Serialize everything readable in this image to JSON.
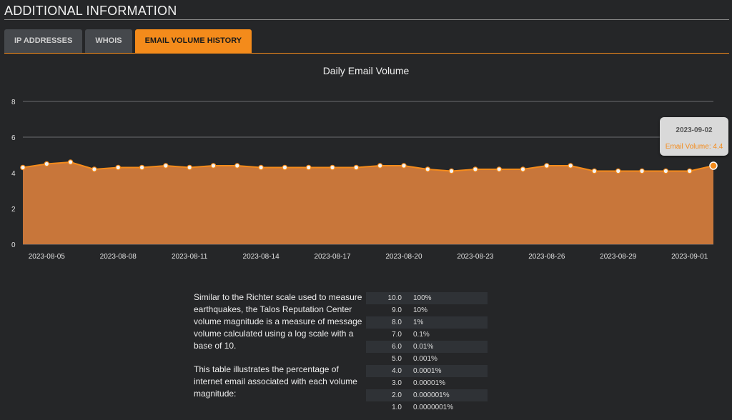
{
  "header": {
    "title": "ADDITIONAL INFORMATION"
  },
  "tabs": [
    {
      "label": "IP ADDRESSES",
      "active": false
    },
    {
      "label": "WHOIS",
      "active": false
    },
    {
      "label": "EMAIL VOLUME HISTORY",
      "active": true
    }
  ],
  "colors": {
    "accent": "#f48b1b",
    "area_fill": "#c8763a",
    "background": "#252628"
  },
  "chart_data": {
    "type": "area",
    "title": "Daily Email Volume",
    "xlabel": "",
    "ylabel": "",
    "ylim": [
      0,
      8
    ],
    "yticks": [
      0,
      2,
      4,
      6,
      8
    ],
    "grid": "horizontal",
    "x_tick_labels": [
      "2023-08-05",
      "2023-08-08",
      "2023-08-11",
      "2023-08-14",
      "2023-08-17",
      "2023-08-20",
      "2023-08-23",
      "2023-08-26",
      "2023-08-29",
      "2023-09-01"
    ],
    "x": [
      "2023-08-04",
      "2023-08-05",
      "2023-08-06",
      "2023-08-07",
      "2023-08-08",
      "2023-08-09",
      "2023-08-10",
      "2023-08-11",
      "2023-08-12",
      "2023-08-13",
      "2023-08-14",
      "2023-08-15",
      "2023-08-16",
      "2023-08-17",
      "2023-08-18",
      "2023-08-19",
      "2023-08-20",
      "2023-08-21",
      "2023-08-22",
      "2023-08-23",
      "2023-08-24",
      "2023-08-25",
      "2023-08-26",
      "2023-08-27",
      "2023-08-28",
      "2023-08-29",
      "2023-08-30",
      "2023-08-31",
      "2023-09-01",
      "2023-09-02"
    ],
    "series": [
      {
        "name": "Email Volume",
        "values": [
          4.3,
          4.5,
          4.6,
          4.2,
          4.3,
          4.3,
          4.4,
          4.3,
          4.4,
          4.4,
          4.3,
          4.3,
          4.3,
          4.3,
          4.3,
          4.4,
          4.4,
          4.2,
          4.1,
          4.2,
          4.2,
          4.2,
          4.4,
          4.4,
          4.1,
          4.1,
          4.1,
          4.1,
          4.1,
          4.4
        ]
      }
    ],
    "tooltip": {
      "date": "2023-09-02",
      "label": "Email Volume:",
      "value": "4.4"
    }
  },
  "info": {
    "paragraph1": "Similar to the Richter scale used to measure earthquakes, the Talos Reputation Center volume magnitude is a measure of message volume calculated using a log scale with a base of 10.",
    "paragraph2": "This table illustrates the percentage of internet email associated with each volume magnitude:"
  },
  "magnitude_table": [
    {
      "magnitude": "10.0",
      "percent": "100%"
    },
    {
      "magnitude": "9.0",
      "percent": "10%"
    },
    {
      "magnitude": "8.0",
      "percent": "1%"
    },
    {
      "magnitude": "7.0",
      "percent": "0.1%"
    },
    {
      "magnitude": "6.0",
      "percent": "0.01%"
    },
    {
      "magnitude": "5.0",
      "percent": "0.001%"
    },
    {
      "magnitude": "4.0",
      "percent": "0.0001%"
    },
    {
      "magnitude": "3.0",
      "percent": "0.00001%"
    },
    {
      "magnitude": "2.0",
      "percent": "0.000001%"
    },
    {
      "magnitude": "1.0",
      "percent": "0.0000001%"
    }
  ]
}
